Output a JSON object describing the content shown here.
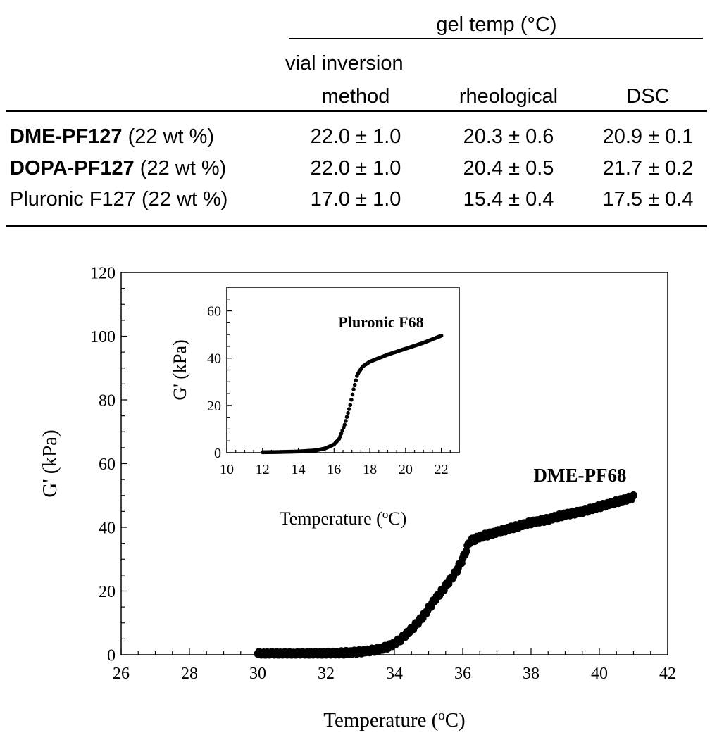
{
  "table": {
    "group_header": "gel temp (°C)",
    "columns": [
      {
        "line1": "vial inversion",
        "line2": "method"
      },
      {
        "line1": "",
        "line2": "rheological"
      },
      {
        "line1": "",
        "line2": "DSC"
      }
    ],
    "rows": [
      {
        "name_bold": "DME-PF127",
        "name_rest": " (22 wt %)",
        "values": [
          "22.0 ± 1.0",
          "20.3 ± 0.6",
          "20.9 ± 0.1"
        ]
      },
      {
        "name_bold": "DOPA-PF127",
        "name_rest": " (22 wt %)",
        "values": [
          "22.0 ± 1.0",
          "20.4 ± 0.5",
          "21.7 ± 0.2"
        ]
      },
      {
        "name_bold": "",
        "name_rest": "Pluronic F127 (22 wt %)",
        "values": [
          "17.0 ± 1.0",
          "15.4 ± 0.4",
          "17.5 ± 0.4"
        ]
      }
    ]
  },
  "chart_data": [
    {
      "type": "scatter",
      "panel": "main",
      "xlabel": "Temperature (oC)",
      "ylabel": "G' (kPa)",
      "xlim": [
        26,
        42
      ],
      "ylim": [
        0,
        120
      ],
      "xticks": [
        26,
        28,
        30,
        32,
        34,
        36,
        38,
        40,
        42
      ],
      "yticks": [
        0,
        20,
        40,
        60,
        80,
        100,
        120
      ],
      "series": [
        {
          "name": "DME-PF68",
          "color": "#000000",
          "points": [
            [
              30.0,
              0.3
            ],
            [
              31.0,
              0.3
            ],
            [
              32.0,
              0.4
            ],
            [
              32.5,
              0.6
            ],
            [
              33.0,
              0.9
            ],
            [
              33.5,
              1.6
            ],
            [
              33.8,
              2.5
            ],
            [
              34.0,
              3.5
            ],
            [
              34.2,
              5.0
            ],
            [
              34.5,
              8.0
            ],
            [
              34.8,
              11.5
            ],
            [
              35.0,
              14.5
            ],
            [
              35.2,
              17.5
            ],
            [
              35.5,
              21.5
            ],
            [
              35.8,
              26.0
            ],
            [
              36.0,
              30.0
            ],
            [
              36.2,
              35.5
            ],
            [
              36.5,
              37.0
            ],
            [
              37.0,
              38.5
            ],
            [
              37.5,
              40.0
            ],
            [
              38.0,
              41.5
            ],
            [
              38.5,
              42.5
            ],
            [
              39.0,
              44.0
            ],
            [
              39.5,
              45.0
            ],
            [
              40.0,
              46.5
            ],
            [
              40.5,
              48.0
            ],
            [
              41.0,
              49.5
            ]
          ]
        }
      ]
    },
    {
      "type": "scatter",
      "panel": "inset",
      "xlabel": "Temperature (oC)",
      "ylabel": "G' (kPa)",
      "xlim": [
        10,
        23
      ],
      "ylim": [
        0,
        70
      ],
      "xticks": [
        10,
        12,
        14,
        16,
        18,
        20,
        22
      ],
      "yticks": [
        0,
        20,
        40,
        60
      ],
      "series": [
        {
          "name": "Pluronic F68",
          "color": "#000000",
          "points": [
            [
              12.0,
              0.2
            ],
            [
              13.0,
              0.3
            ],
            [
              14.0,
              0.5
            ],
            [
              15.0,
              1.0
            ],
            [
              15.5,
              1.8
            ],
            [
              16.0,
              3.5
            ],
            [
              16.3,
              6.0
            ],
            [
              16.6,
              12.0
            ],
            [
              16.9,
              20.0
            ],
            [
              17.1,
              27.0
            ],
            [
              17.3,
              33.0
            ],
            [
              17.6,
              36.5
            ],
            [
              18.0,
              38.5
            ],
            [
              19.0,
              41.5
            ],
            [
              20.0,
              44.0
            ],
            [
              21.0,
              46.5
            ],
            [
              22.0,
              49.5
            ]
          ]
        }
      ]
    }
  ]
}
